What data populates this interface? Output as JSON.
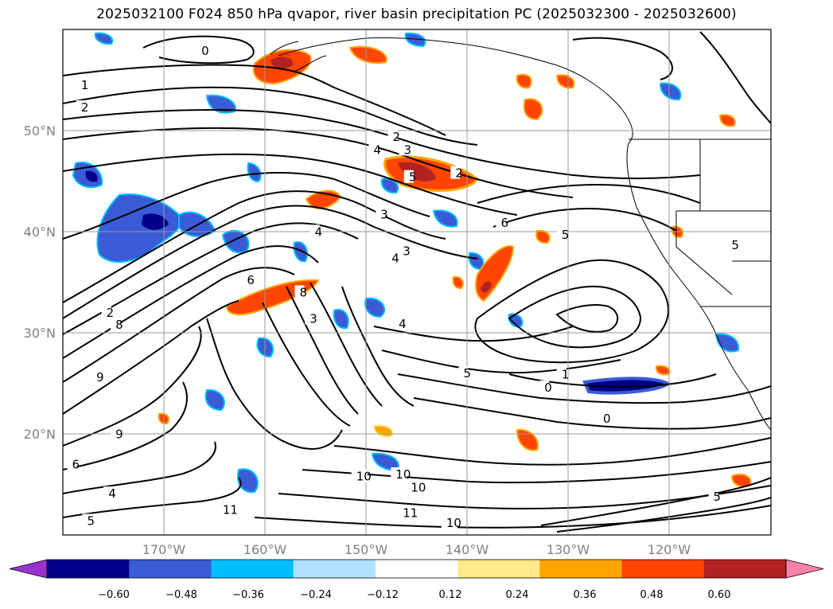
{
  "title": "2025032100 F024 850 hPa qvapor, river basin precipitation PC (2025032300 - 2025032600)",
  "map": {
    "projection": "PlateCarree",
    "lon_range": [
      -180,
      -110
    ],
    "lat_range": [
      10,
      60
    ],
    "gridlines": true,
    "lat_labels": [
      "50°N",
      "40°N",
      "30°N",
      "20°N"
    ],
    "lat_values": [
      50,
      40,
      30,
      20
    ],
    "lon_labels": [
      "170°W",
      "160°W",
      "150°W",
      "140°W",
      "130°W",
      "120°W"
    ],
    "lon_values": [
      -170,
      -160,
      -150,
      -140,
      -130,
      -120
    ]
  },
  "colorbar": {
    "ticks": [
      "−0.60",
      "−0.48",
      "−0.36",
      "−0.24",
      "−0.12",
      "0.12",
      "0.24",
      "0.36",
      "0.48",
      "0.60"
    ],
    "colors": [
      "#9932cc",
      "#00008b",
      "#3a5bd6",
      "#00bfff",
      "#b0e2ff",
      "#ffffff",
      "#ffe98a",
      "#ffa500",
      "#ff4500",
      "#b22222",
      "#ff82ab"
    ],
    "extend": "both"
  },
  "contour_labels": [
    {
      "text": "0",
      "lon": -166.3,
      "lat": 57.8
    },
    {
      "text": "1",
      "lon": -178.2,
      "lat": 54.4
    },
    {
      "text": "2",
      "lon": -178.2,
      "lat": 52.2
    },
    {
      "text": "2",
      "lon": -147.4,
      "lat": 49.3
    },
    {
      "text": "3",
      "lon": -146.3,
      "lat": 48.0
    },
    {
      "text": "4",
      "lon": -149.3,
      "lat": 48.0
    },
    {
      "text": "5",
      "lon": -145.8,
      "lat": 45.3
    },
    {
      "text": "2",
      "lon": -141.2,
      "lat": 45.7
    },
    {
      "text": "3",
      "lon": -148.6,
      "lat": 41.6
    },
    {
      "text": "6",
      "lon": -136.7,
      "lat": 40.8
    },
    {
      "text": "5",
      "lon": -130.7,
      "lat": 39.6
    },
    {
      "text": "5",
      "lon": -113.9,
      "lat": 38.6
    },
    {
      "text": "4",
      "lon": -155.1,
      "lat": 39.9
    },
    {
      "text": "3",
      "lon": -146.4,
      "lat": 38.0
    },
    {
      "text": "4",
      "lon": -147.5,
      "lat": 37.3
    },
    {
      "text": "6",
      "lon": -161.8,
      "lat": 35.1
    },
    {
      "text": "8",
      "lon": -156.6,
      "lat": 33.9
    },
    {
      "text": "3",
      "lon": -155.6,
      "lat": 31.3
    },
    {
      "text": "4",
      "lon": -146.8,
      "lat": 30.8
    },
    {
      "text": "8",
      "lon": -174.8,
      "lat": 30.7
    },
    {
      "text": "5",
      "lon": -140.4,
      "lat": 25.9
    },
    {
      "text": "1",
      "lon": -130.7,
      "lat": 25.8
    },
    {
      "text": "0",
      "lon": -132.4,
      "lat": 24.5
    },
    {
      "text": "0",
      "lon": -126.6,
      "lat": 21.4
    },
    {
      "text": "9",
      "lon": -176.7,
      "lat": 25.5
    },
    {
      "text": "9",
      "lon": -174.8,
      "lat": 19.9
    },
    {
      "text": "6",
      "lon": -179.1,
      "lat": 16.9
    },
    {
      "text": "4",
      "lon": -175.5,
      "lat": 14.0
    },
    {
      "text": "5",
      "lon": -177.6,
      "lat": 11.3
    },
    {
      "text": "10",
      "lon": -151.0,
      "lat": 15.7
    },
    {
      "text": "10",
      "lon": -147.1,
      "lat": 15.9
    },
    {
      "text": "10",
      "lon": -145.6,
      "lat": 14.6
    },
    {
      "text": "11",
      "lon": -146.4,
      "lat": 12.1
    },
    {
      "text": "10",
      "lon": -142.1,
      "lat": 11.1
    },
    {
      "text": "11",
      "lon": -164.2,
      "lat": 12.4
    },
    {
      "text": "2",
      "lon": -175.7,
      "lat": 31.9
    },
    {
      "text": "5",
      "lon": -115.7,
      "lat": 13.7
    }
  ]
}
